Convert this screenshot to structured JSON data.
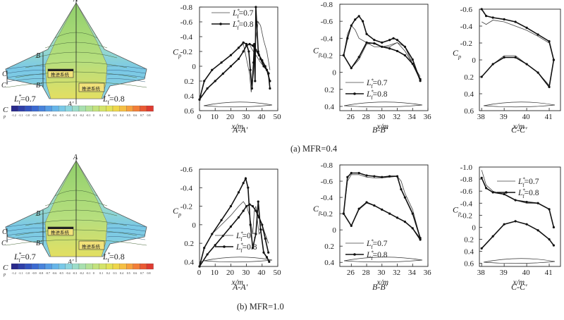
{
  "captions": {
    "row_a": "(a) MFR=0.4",
    "row_b": "(b) MFR=1.0"
  },
  "contour": {
    "section_labels": {
      "a": "A",
      "a_prime": "A′",
      "b": "B",
      "b_prime": "B′",
      "c": "C",
      "c_prime": "C′"
    },
    "left_label": "L*f=0.7",
    "right_label": "L*f=0.8",
    "inlet_text": "推进系统",
    "scale_title": "C",
    "scale_sub": "p",
    "scale_ticks": [
      "-1.2",
      "-1.1",
      "-1.0",
      "-0.9",
      "-0.8",
      "-0.7",
      "-0.6",
      "-0.5",
      "-0.4",
      "-0.3",
      "-0.2",
      "-0.1",
      "0",
      "0.1",
      "0.2",
      "0.3",
      "0.4",
      "0.5",
      "0.6",
      "0.7",
      "0.8"
    ],
    "scale_colors": [
      "#2a2a8c",
      "#2f3fa8",
      "#3353bf",
      "#3c6ad0",
      "#4883db",
      "#579de4",
      "#67b5e8",
      "#79c8e6",
      "#8dd5de",
      "#9cdcc9",
      "#a8dfaf",
      "#b4e196",
      "#c3e27e",
      "#d3e369",
      "#e2e258",
      "#eed64b",
      "#f5bf44",
      "#f6a03e",
      "#f27e38",
      "#ea5a34",
      "#dd3b31"
    ]
  },
  "chart_data": [
    {
      "type": "line",
      "id": "a-AA",
      "title": "A-A′",
      "xlabel": "x/m",
      "ylabel": "Cp",
      "xlim": [
        0,
        50
      ],
      "ylim": [
        -0.8,
        0.6
      ],
      "y_inverted": true,
      "xticks": [
        0,
        10,
        20,
        30,
        40,
        50
      ],
      "yticks": [
        -0.8,
        -0.6,
        -0.4,
        -0.2,
        0,
        0.2,
        0.4,
        0.6
      ],
      "legend": [
        "L*f=0.7",
        "L*f=0.8"
      ],
      "series": [
        {
          "name": "L*f=0.7 upper",
          "style": "thin",
          "x": [
            0,
            3,
            8,
            14,
            20,
            25,
            28,
            30,
            32,
            33,
            34.5,
            35.5,
            36.5,
            37.5,
            39,
            41,
            43,
            45
          ],
          "y": [
            0.45,
            0.2,
            0.05,
            -0.05,
            -0.15,
            -0.25,
            -0.3,
            -0.1,
            0.1,
            0.35,
            0.1,
            -0.3,
            -0.45,
            -0.6,
            -0.55,
            -0.35,
            -0.2,
            0.05
          ]
        },
        {
          "name": "L*f=0.7 lower",
          "style": "thin",
          "x": [
            0,
            5,
            10,
            15,
            20,
            25,
            28,
            30,
            32,
            33,
            35,
            37,
            39,
            41,
            43,
            45
          ],
          "y": [
            0.45,
            0.3,
            0.2,
            0.1,
            0.0,
            -0.1,
            -0.2,
            -0.28,
            -0.3,
            -0.25,
            -0.18,
            -0.12,
            -0.05,
            0.0,
            0.05,
            0.1
          ]
        },
        {
          "name": "L*f=0.8 upper",
          "style": "marker",
          "x": [
            0,
            3,
            8,
            14,
            20,
            25,
            28,
            30,
            31.5,
            32.5,
            33.5,
            34.5,
            35,
            35.5,
            36,
            36.5,
            37.5,
            39,
            41,
            43,
            45
          ],
          "y": [
            0.45,
            0.2,
            0.05,
            -0.05,
            -0.15,
            -0.25,
            -0.32,
            -0.3,
            -0.2,
            0.05,
            0.3,
            -0.05,
            -0.3,
            0.2,
            -0.8,
            -0.6,
            -0.2,
            -0.1,
            0.0,
            0.05,
            0.2
          ]
        },
        {
          "name": "L*f=0.8 lower",
          "style": "marker",
          "x": [
            0,
            5,
            10,
            15,
            20,
            25,
            28,
            30,
            32,
            34,
            36,
            38,
            40,
            42,
            44,
            45
          ],
          "y": [
            0.45,
            0.3,
            0.2,
            0.1,
            0.0,
            -0.1,
            -0.2,
            -0.28,
            -0.3,
            -0.28,
            -0.22,
            -0.15,
            -0.08,
            0.0,
            0.1,
            0.3
          ]
        }
      ]
    },
    {
      "type": "line",
      "id": "a-BB",
      "title": "B-B′",
      "xlabel": "x/m",
      "ylabel": "Cp",
      "xlim": [
        24.5,
        36
      ],
      "ylim": [
        -0.8,
        0.45
      ],
      "y_inverted": true,
      "xticks": [
        26,
        28,
        30,
        32,
        34,
        36
      ],
      "yticks": [
        -0.8,
        -0.6,
        -0.4,
        -0.2,
        0,
        0.2,
        0.4
      ],
      "legend": [
        "L*f=0.7",
        "L*f=0.8"
      ],
      "series": [
        {
          "name": "L*f=0.7 upper",
          "style": "thin",
          "x": [
            25,
            25.5,
            26,
            26.5,
            27,
            28,
            29,
            30,
            31,
            32,
            33,
            34,
            35
          ],
          "y": [
            -0.2,
            -0.45,
            -0.55,
            -0.5,
            -0.4,
            -0.35,
            -0.3,
            -0.3,
            -0.32,
            -0.35,
            -0.3,
            -0.1,
            0.1
          ]
        },
        {
          "name": "L*f=0.7 lower",
          "style": "thin",
          "x": [
            25,
            26,
            27,
            28,
            29,
            30,
            31,
            32,
            33,
            34,
            35
          ],
          "y": [
            -0.2,
            -0.05,
            -0.15,
            -0.33,
            -0.35,
            -0.3,
            -0.3,
            -0.35,
            -0.25,
            -0.1,
            0.05
          ]
        },
        {
          "name": "L*f=0.8 upper",
          "style": "marker",
          "x": [
            25,
            25.5,
            26,
            26.5,
            27,
            27.5,
            28,
            29,
            30,
            31,
            31.5,
            32,
            33,
            34,
            35
          ],
          "y": [
            -0.2,
            -0.4,
            -0.55,
            -0.62,
            -0.66,
            -0.6,
            -0.45,
            -0.38,
            -0.35,
            -0.38,
            -0.4,
            -0.38,
            -0.3,
            -0.15,
            0.1
          ]
        },
        {
          "name": "L*f=0.8 lower",
          "style": "marker",
          "x": [
            25,
            26,
            27,
            28,
            29,
            30,
            31,
            32,
            33,
            34,
            35
          ],
          "y": [
            -0.2,
            -0.05,
            -0.18,
            -0.35,
            -0.34,
            -0.3,
            -0.28,
            -0.25,
            -0.2,
            -0.1,
            0.08
          ]
        }
      ]
    },
    {
      "type": "line",
      "id": "a-CC",
      "title": "C-C′",
      "xlabel": "x/m",
      "ylabel": "Cp",
      "xlim": [
        37.9,
        41.5
      ],
      "ylim": [
        -0.6,
        0.6
      ],
      "y_inverted": true,
      "xticks": [
        38,
        39,
        40,
        41
      ],
      "yticks": [
        -0.6,
        -0.4,
        -0.2,
        0,
        0.2,
        0.4,
        0.6
      ],
      "legend": [],
      "series": [
        {
          "name": "L*f=0.7 upper",
          "style": "thin",
          "x": [
            38,
            38.2,
            38.5,
            39,
            39.5,
            40,
            40.5,
            41,
            41.2
          ],
          "y": [
            -0.45,
            -0.42,
            -0.47,
            -0.45,
            -0.4,
            -0.35,
            -0.28,
            -0.2,
            0.0
          ]
        },
        {
          "name": "L*f=0.7 lower",
          "style": "thin",
          "x": [
            38,
            38.5,
            39,
            39.5,
            40,
            40.5,
            41,
            41.2
          ],
          "y": [
            0.2,
            0.05,
            -0.05,
            -0.05,
            0.05,
            0.15,
            0.3,
            0.0
          ]
        },
        {
          "name": "L*f=0.8 upper",
          "style": "marker",
          "x": [
            38,
            38.2,
            38.5,
            39,
            39.5,
            40,
            40.5,
            41,
            41.2
          ],
          "y": [
            -0.6,
            -0.52,
            -0.5,
            -0.48,
            -0.45,
            -0.38,
            -0.3,
            -0.22,
            0.0
          ]
        },
        {
          "name": "L*f=0.8 lower",
          "style": "marker",
          "x": [
            38,
            38.5,
            39,
            39.5,
            40,
            40.5,
            41,
            41.2
          ],
          "y": [
            0.2,
            0.05,
            -0.03,
            -0.03,
            0.05,
            0.15,
            0.32,
            0.0
          ]
        }
      ]
    },
    {
      "type": "line",
      "id": "b-AA",
      "title": "A-A′",
      "xlabel": "x/m",
      "ylabel": "Cp",
      "xlim": [
        0,
        50
      ],
      "ylim": [
        -0.6,
        0.45
      ],
      "y_inverted": true,
      "xticks": [
        0,
        10,
        20,
        30,
        40,
        50
      ],
      "yticks": [
        -0.6,
        -0.4,
        -0.2,
        0,
        0.2,
        0.4
      ],
      "legend": [
        "L*f=0.7",
        "L*f=0.8"
      ],
      "series": [
        {
          "name": "L*f=0.7 upper",
          "style": "thin",
          "x": [
            0,
            3,
            8,
            14,
            20,
            25,
            28,
            30,
            32,
            34,
            35,
            36,
            37,
            38,
            40,
            42,
            44
          ],
          "y": [
            0.45,
            0.25,
            0.1,
            0.0,
            -0.1,
            -0.2,
            -0.25,
            -0.2,
            -0.1,
            0.1,
            -0.15,
            -0.2,
            -0.05,
            0.1,
            0.05,
            0.1,
            0.2
          ]
        },
        {
          "name": "L*f=0.7 lower",
          "style": "thin",
          "x": [
            0,
            5,
            10,
            15,
            20,
            25,
            28,
            30,
            32,
            34,
            36,
            38,
            40,
            42,
            44
          ],
          "y": [
            0.45,
            0.32,
            0.22,
            0.12,
            0.02,
            -0.08,
            -0.15,
            -0.2,
            -0.22,
            -0.2,
            -0.15,
            -0.08,
            0.0,
            0.1,
            0.2
          ]
        },
        {
          "name": "L*f=0.8 upper",
          "style": "marker",
          "x": [
            0,
            3,
            8,
            14,
            20,
            25,
            28,
            29.5,
            31,
            32.5,
            34,
            36,
            37.5,
            39,
            41,
            43,
            44.5
          ],
          "y": [
            0.45,
            0.25,
            0.1,
            -0.05,
            -0.2,
            -0.35,
            -0.45,
            -0.5,
            -0.4,
            0.0,
            0.25,
            0.1,
            -0.25,
            0.05,
            0.3,
            0.35,
            0.4
          ]
        },
        {
          "name": "L*f=0.8 lower",
          "style": "marker",
          "x": [
            0,
            5,
            10,
            15,
            20,
            25,
            28,
            30,
            32,
            34,
            36,
            38,
            40,
            42,
            44
          ],
          "y": [
            0.45,
            0.32,
            0.22,
            0.12,
            0.02,
            -0.08,
            -0.15,
            -0.2,
            -0.22,
            -0.2,
            -0.15,
            -0.08,
            0.0,
            0.15,
            0.3
          ]
        }
      ]
    },
    {
      "type": "line",
      "id": "b-BB",
      "title": "B-B′",
      "xlabel": "x/m",
      "ylabel": "Cp",
      "xlim": [
        24.5,
        36
      ],
      "ylim": [
        -0.8,
        0.45
      ],
      "y_inverted": true,
      "xticks": [
        26,
        28,
        30,
        32,
        34,
        36
      ],
      "yticks": [
        -0.8,
        -0.6,
        -0.4,
        -0.2,
        0,
        0.2,
        0.4
      ],
      "legend": [
        "L*f=0.7",
        "L*f=0.8"
      ],
      "series": [
        {
          "name": "L*f=0.7 upper",
          "style": "thin",
          "x": [
            25,
            25.5,
            26,
            27,
            28,
            29,
            30,
            31,
            32,
            32.5,
            33,
            34,
            35
          ],
          "y": [
            -0.2,
            -0.6,
            -0.68,
            -0.68,
            -0.65,
            -0.64,
            -0.64,
            -0.65,
            -0.66,
            -0.6,
            -0.45,
            -0.25,
            0.1
          ]
        },
        {
          "name": "L*f=0.7 lower",
          "style": "thin",
          "x": [
            25,
            26,
            27,
            28,
            29,
            30,
            31,
            32,
            33,
            34,
            35
          ],
          "y": [
            -0.2,
            -0.05,
            -0.25,
            -0.33,
            -0.3,
            -0.25,
            -0.2,
            -0.15,
            -0.1,
            -0.02,
            0.1
          ]
        },
        {
          "name": "L*f=0.8 upper",
          "style": "marker",
          "x": [
            25,
            25.5,
            26,
            27,
            28,
            29,
            30,
            31,
            32,
            32.5,
            33,
            34,
            35
          ],
          "y": [
            -0.2,
            -0.65,
            -0.7,
            -0.7,
            -0.67,
            -0.66,
            -0.65,
            -0.66,
            -0.66,
            -0.5,
            -0.4,
            -0.2,
            0.1
          ]
        },
        {
          "name": "L*f=0.8 lower",
          "style": "marker",
          "x": [
            25,
            26,
            27,
            28,
            29,
            30,
            31,
            32,
            33,
            34,
            35
          ],
          "y": [
            -0.2,
            -0.05,
            -0.26,
            -0.34,
            -0.3,
            -0.25,
            -0.2,
            -0.15,
            -0.1,
            -0.02,
            0.12
          ]
        }
      ]
    },
    {
      "type": "line",
      "id": "b-CC",
      "title": "C-C′",
      "xlabel": "x/m",
      "ylabel": "Cp",
      "xlim": [
        37.9,
        41.5
      ],
      "ylim": [
        -1.0,
        0.65
      ],
      "y_inverted": true,
      "xticks": [
        38,
        39,
        40,
        41
      ],
      "yticks": [
        -1.0,
        -0.8,
        -0.6,
        -0.4,
        -0.2,
        0,
        0.2,
        0.4,
        0.6
      ],
      "legend": [
        "L*f=0.7",
        "L*f=0.8"
      ],
      "series": [
        {
          "name": "L*f=0.7 upper",
          "style": "thin",
          "x": [
            38,
            38.2,
            38.5,
            39,
            39.5,
            40,
            40.5,
            41,
            41.2
          ],
          "y": [
            -0.95,
            -0.7,
            -0.6,
            -0.55,
            -0.45,
            -0.4,
            -0.4,
            -0.3,
            0.0
          ]
        },
        {
          "name": "L*f=0.7 lower",
          "style": "thin",
          "x": [
            38,
            38.5,
            39,
            39.5,
            40,
            40.5,
            41,
            41.2
          ],
          "y": [
            0.35,
            0.15,
            -0.05,
            -0.1,
            -0.05,
            0.05,
            0.2,
            0.3
          ]
        },
        {
          "name": "L*f=0.8 upper",
          "style": "marker",
          "x": [
            38,
            38.2,
            38.5,
            39,
            39.5,
            40,
            40.5,
            41,
            41.2
          ],
          "y": [
            -0.82,
            -0.65,
            -0.58,
            -0.55,
            -0.45,
            -0.42,
            -0.4,
            -0.3,
            0.0
          ]
        },
        {
          "name": "L*f=0.8 lower",
          "style": "marker",
          "x": [
            38,
            38.5,
            39,
            39.5,
            40,
            40.5,
            41,
            41.2
          ],
          "y": [
            0.35,
            0.15,
            -0.05,
            -0.1,
            -0.05,
            0.05,
            0.2,
            0.3
          ]
        }
      ]
    }
  ]
}
